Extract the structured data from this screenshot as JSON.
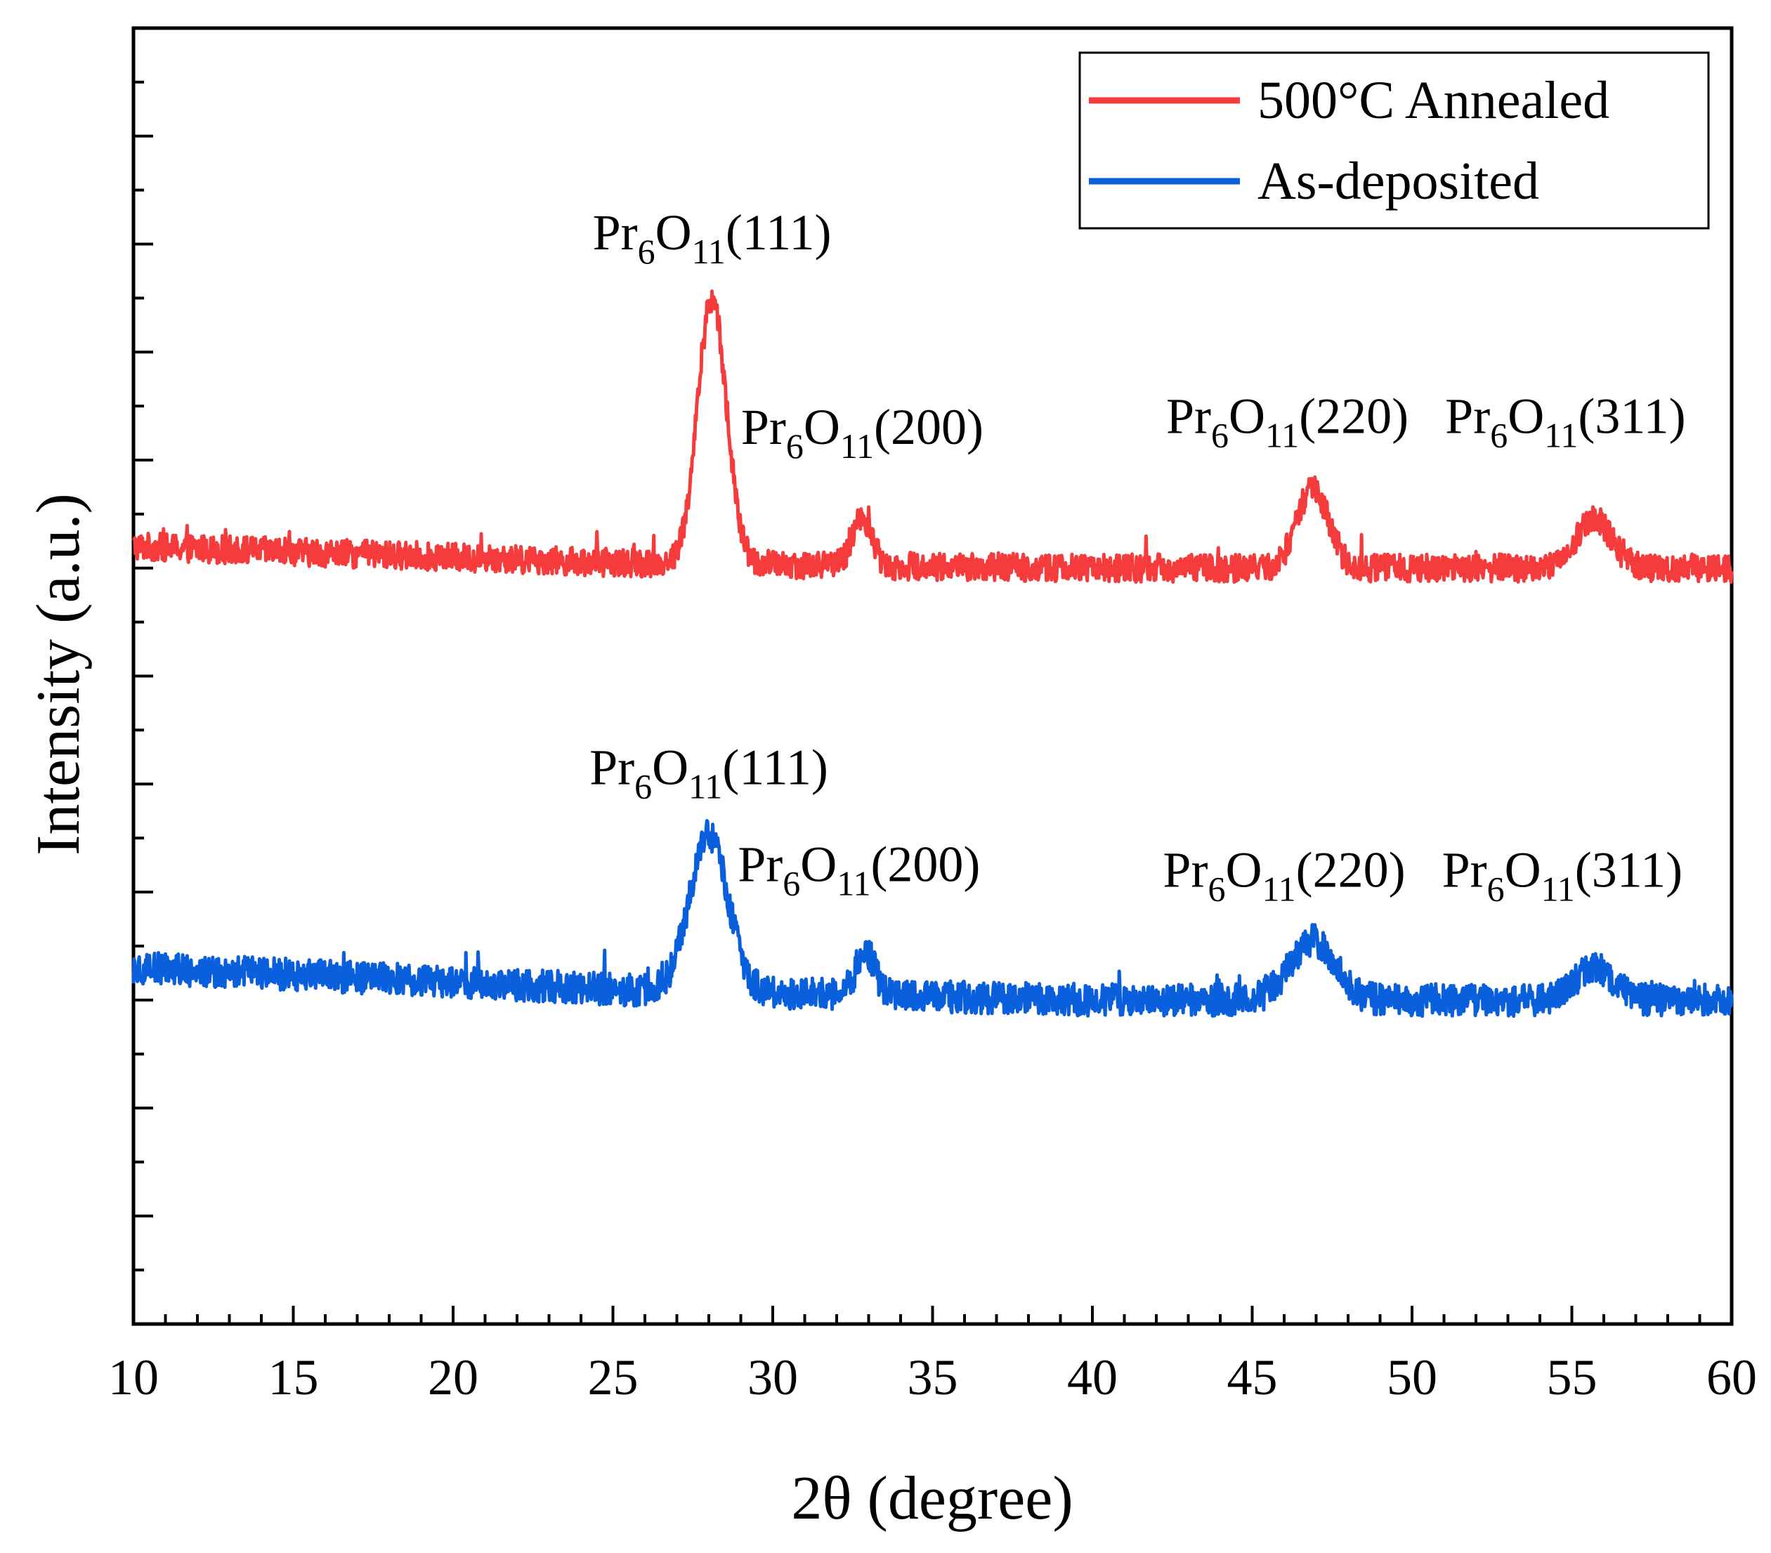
{
  "chart_data": {
    "type": "line",
    "xlabel": "2θ (degree)",
    "ylabel": "Intensity (a.u.)",
    "xlim": [
      10,
      60
    ],
    "ylim": [
      0,
      12
    ],
    "x_ticks": [
      "10",
      "15",
      "20",
      "25",
      "30",
      "35",
      "40",
      "45",
      "50",
      "55",
      "60"
    ],
    "y_tick_labels": "none",
    "grid": false,
    "legend_position": "top-right",
    "series": [
      {
        "name": "500°C Annealed",
        "color": "#f53b3b",
        "baseline": 7.0,
        "noise": 0.13,
        "background": [
          [
            10,
            7.2
          ],
          [
            25,
            7.05
          ],
          [
            40,
            7.0
          ],
          [
            60,
            7.0
          ]
        ],
        "peaks": [
          {
            "x": 28.1,
            "height": 2.45,
            "width": 0.45
          },
          {
            "x": 32.8,
            "height": 0.45,
            "width": 0.3
          },
          {
            "x": 46.9,
            "height": 0.72,
            "width": 0.5
          },
          {
            "x": 55.7,
            "height": 0.45,
            "width": 0.55
          }
        ]
      },
      {
        "name": "As-deposited",
        "color": "#0a5fdc",
        "baseline": 3.0,
        "noise": 0.15,
        "background": [
          [
            10,
            3.3
          ],
          [
            25,
            3.1
          ],
          [
            40,
            3.0
          ],
          [
            60,
            3.0
          ]
        ],
        "peaks": [
          {
            "x": 28.0,
            "height": 1.45,
            "width": 0.6
          },
          {
            "x": 32.9,
            "height": 0.4,
            "width": 0.3
          },
          {
            "x": 46.9,
            "height": 0.55,
            "width": 0.7
          },
          {
            "x": 55.7,
            "height": 0.3,
            "width": 0.6
          }
        ]
      }
    ],
    "annotations": [
      {
        "series": "500°C Annealed",
        "x": 28.1,
        "y": 9.95,
        "base": "Pr",
        "sub1": "6",
        "mid": "O",
        "sub2": "11",
        "hkl": "(111)"
      },
      {
        "series": "500°C Annealed",
        "x": 32.8,
        "y": 8.15,
        "base": "Pr",
        "sub1": "6",
        "mid": "O",
        "sub2": "11",
        "hkl": "(200)"
      },
      {
        "series": "500°C Annealed",
        "x": 46.1,
        "y": 8.25,
        "base": "Pr",
        "sub1": "6",
        "mid": "O",
        "sub2": "11",
        "hkl": "(220)"
      },
      {
        "series": "500°C Annealed",
        "x": 54.8,
        "y": 8.25,
        "base": "Pr",
        "sub1": "6",
        "mid": "O",
        "sub2": "11",
        "hkl": "(311)"
      },
      {
        "series": "As-deposited",
        "x": 28.0,
        "y": 5.0,
        "base": "Pr",
        "sub1": "6",
        "mid": "O",
        "sub2": "11",
        "hkl": "(111)"
      },
      {
        "series": "As-deposited",
        "x": 32.7,
        "y": 4.1,
        "base": "Pr",
        "sub1": "6",
        "mid": "O",
        "sub2": "11",
        "hkl": "(200)"
      },
      {
        "series": "As-deposited",
        "x": 46.0,
        "y": 4.05,
        "base": "Pr",
        "sub1": "6",
        "mid": "O",
        "sub2": "11",
        "hkl": "(220)"
      },
      {
        "series": "As-deposited",
        "x": 54.7,
        "y": 4.05,
        "base": "Pr",
        "sub1": "6",
        "mid": "O",
        "sub2": "11",
        "hkl": "(311)"
      }
    ]
  }
}
